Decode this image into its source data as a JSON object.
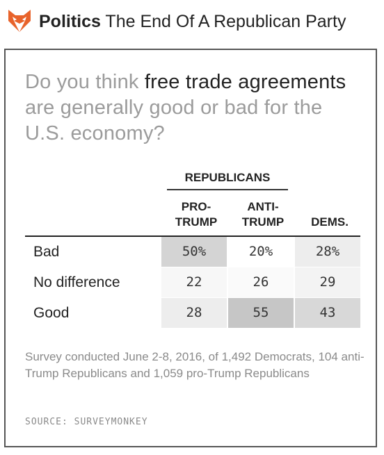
{
  "header": {
    "logo_icon": "fox-icon",
    "section": "Politics",
    "headline": "The End Of A Republican Party"
  },
  "question": {
    "part1": "Do you think ",
    "emphasis1": "free trade agreements",
    "part2": " are generally good or bad for the U.S. economy?"
  },
  "table": {
    "group_header": "REPUBLICANS",
    "columns": [
      {
        "line1": "PRO-",
        "line2": "TRUMP"
      },
      {
        "line1": "ANTI-",
        "line2": "TRUMP"
      },
      {
        "line1": "",
        "line2": "DEMS."
      }
    ],
    "rows": [
      {
        "label": "Bad",
        "values": [
          "50%",
          "20%",
          "28%"
        ],
        "shades": [
          "#d4d4d4",
          "#ffffff",
          "#ededed"
        ]
      },
      {
        "label": "No difference",
        "values": [
          "22",
          "26",
          "29"
        ],
        "shades": [
          "#f7f7f7",
          "#fafafa",
          "#f3f3f3"
        ]
      },
      {
        "label": "Good",
        "values": [
          "28",
          "55",
          "43"
        ],
        "shades": [
          "#ededed",
          "#c6c6c6",
          "#d8d8d8"
        ]
      }
    ]
  },
  "note": "Survey conducted June 2-8, 2016, of 1,492 Democrats, 104 anti-Trump Republicans and 1,059 pro-Trump Republicans",
  "source": "SOURCE: SURVEYMONKEY",
  "colors": {
    "logo_orange": "#e8632b",
    "muted_text": "#9b9b9b",
    "border": "#555555"
  }
}
